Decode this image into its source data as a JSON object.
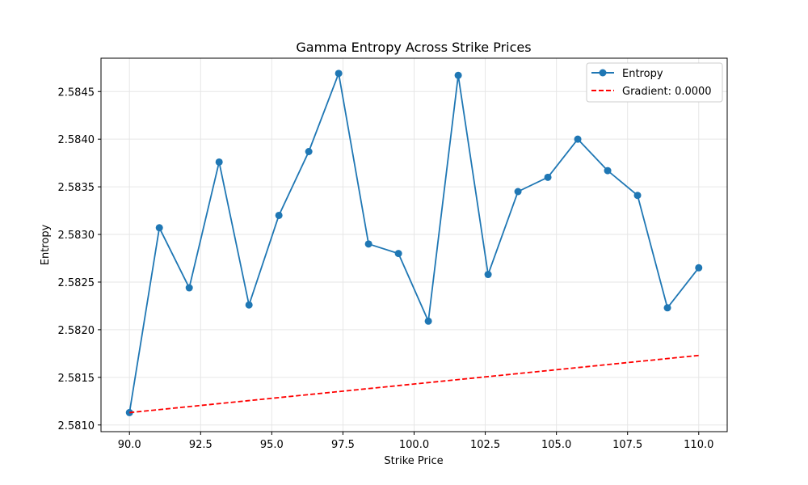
{
  "chart_data": {
    "type": "line",
    "title": "Gamma Entropy Across Strike Prices",
    "xlabel": "Strike Price",
    "ylabel": "Entropy",
    "xlim": [
      89.0,
      111.0
    ],
    "ylim": [
      2.58093,
      2.58485
    ],
    "x_ticks": [
      "90.0",
      "92.5",
      "95.0",
      "97.5",
      "100.0",
      "102.5",
      "105.0",
      "107.5",
      "110.0"
    ],
    "y_ticks": [
      "2.5810",
      "2.5815",
      "2.5820",
      "2.5825",
      "2.5830",
      "2.5835",
      "2.5840",
      "2.5845"
    ],
    "grid": true,
    "legend_position": "top-right",
    "series": [
      {
        "name": "Entropy",
        "color": "#1f77b4",
        "style": "solid-marker",
        "x": [
          90.0,
          91.05,
          92.1,
          93.15,
          94.2,
          95.25,
          96.3,
          97.35,
          98.4,
          99.45,
          100.5,
          101.55,
          102.6,
          103.65,
          104.7,
          105.75,
          106.8,
          107.85,
          108.9,
          110.0
        ],
        "y": [
          2.58113,
          2.58307,
          2.58244,
          2.58376,
          2.58226,
          2.5832,
          2.58387,
          2.58469,
          2.5829,
          2.5828,
          2.58209,
          2.58467,
          2.58258,
          2.58345,
          2.5836,
          2.584,
          2.58367,
          2.58341,
          2.58223,
          2.58265
        ]
      },
      {
        "name": "Gradient: 0.0000",
        "color": "#ff0000",
        "style": "dashed",
        "x": [
          90.0,
          110.0
        ],
        "y": [
          2.58113,
          2.58173
        ]
      }
    ]
  }
}
